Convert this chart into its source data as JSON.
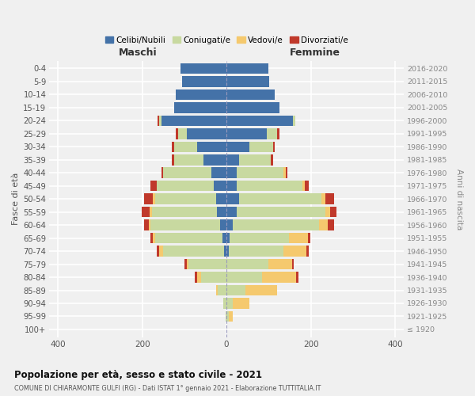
{
  "age_groups": [
    "0-4",
    "5-9",
    "10-14",
    "15-19",
    "20-24",
    "25-29",
    "30-34",
    "35-39",
    "40-44",
    "45-49",
    "50-54",
    "55-59",
    "60-64",
    "65-69",
    "70-74",
    "75-79",
    "80-84",
    "85-89",
    "90-94",
    "95-99",
    "100+"
  ],
  "birth_years": [
    "2016-2020",
    "2011-2015",
    "2006-2010",
    "2001-2005",
    "1996-2000",
    "1991-1995",
    "1986-1990",
    "1981-1985",
    "1976-1980",
    "1971-1975",
    "1966-1970",
    "1961-1965",
    "1956-1960",
    "1951-1955",
    "1946-1950",
    "1941-1945",
    "1936-1940",
    "1931-1935",
    "1926-1930",
    "1921-1925",
    "≤ 1920"
  ],
  "males_celibi": [
    110,
    105,
    120,
    125,
    155,
    95,
    70,
    55,
    35,
    30,
    25,
    22,
    15,
    10,
    5,
    0,
    0,
    0,
    0,
    0,
    0
  ],
  "males_coniugati": [
    0,
    0,
    0,
    0,
    5,
    20,
    55,
    70,
    115,
    135,
    145,
    155,
    165,
    160,
    145,
    90,
    60,
    20,
    8,
    2,
    0
  ],
  "males_vedovi": [
    0,
    0,
    0,
    0,
    0,
    0,
    0,
    0,
    0,
    0,
    5,
    5,
    5,
    5,
    10,
    5,
    10,
    5,
    0,
    0,
    0
  ],
  "males_divorziati": [
    0,
    0,
    0,
    0,
    3,
    5,
    5,
    5,
    5,
    15,
    20,
    20,
    10,
    5,
    5,
    5,
    5,
    0,
    0,
    0,
    0
  ],
  "females_nubili": [
    100,
    102,
    115,
    125,
    158,
    95,
    55,
    30,
    25,
    25,
    30,
    25,
    15,
    8,
    5,
    0,
    0,
    0,
    0,
    0,
    0
  ],
  "females_coniugate": [
    0,
    0,
    0,
    0,
    5,
    25,
    55,
    75,
    110,
    155,
    195,
    210,
    205,
    140,
    130,
    100,
    85,
    45,
    15,
    5,
    0
  ],
  "females_vedove": [
    0,
    0,
    0,
    0,
    0,
    0,
    0,
    0,
    5,
    5,
    10,
    10,
    20,
    45,
    55,
    55,
    80,
    75,
    40,
    10,
    0
  ],
  "females_divorziate": [
    0,
    0,
    0,
    0,
    0,
    5,
    5,
    5,
    5,
    10,
    20,
    15,
    15,
    5,
    5,
    5,
    5,
    0,
    0,
    0,
    0
  ],
  "color_celibi": "#4472a8",
  "color_coniugati": "#c8d9a0",
  "color_vedovi": "#f5c96e",
  "color_divorziati": "#c0392b",
  "bg_color": "#f0f0f0",
  "grid_color": "#ffffff",
  "title": "Popolazione per età, sesso e stato civile - 2021",
  "subtitle": "COMUNE DI CHIARAMONTE GULFI (RG) - Dati ISTAT 1° gennaio 2021 - Elaborazione TUTTITALIA.IT",
  "legend_labels": [
    "Celibi/Nubili",
    "Coniugati/e",
    "Vedovi/e",
    "Divorziati/e"
  ],
  "label_maschi": "Maschi",
  "label_femmine": "Femmine",
  "ylabel_left": "Fasce di età",
  "ylabel_right": "Anni di nascita",
  "xlim": 420
}
